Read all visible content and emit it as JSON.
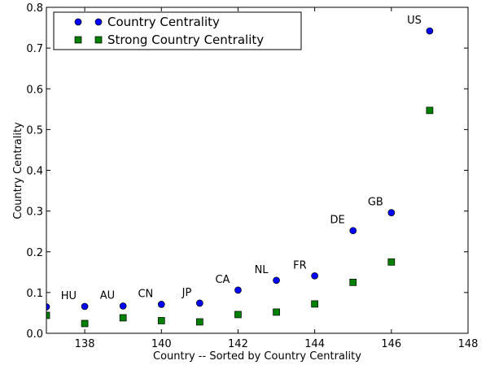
{
  "chart_data": {
    "type": "scatter",
    "xlabel": "Country -- Sorted by Country Centrality",
    "ylabel": "Country Centrality",
    "xlim": [
      137,
      148
    ],
    "ylim": [
      0,
      0.8
    ],
    "xticks": [
      138,
      140,
      142,
      144,
      146,
      148
    ],
    "yticks": [
      0.0,
      0.1,
      0.2,
      0.3,
      0.4,
      0.5,
      0.6,
      0.7,
      0.8
    ],
    "xtick_labels": [
      "138",
      "140",
      "142",
      "144",
      "146",
      "148"
    ],
    "ytick_labels": [
      "0.0",
      "0.1",
      "0.2",
      "0.3",
      "0.4",
      "0.5",
      "0.6",
      "0.7",
      "0.8"
    ],
    "grid": false,
    "legend_position": "top-left",
    "series": [
      {
        "name": "Country Centrality",
        "marker": "circle",
        "color": "#0000ff",
        "x": [
          137,
          138,
          139,
          140,
          141,
          142,
          143,
          144,
          145,
          146,
          147
        ],
        "y": [
          0.065,
          0.066,
          0.067,
          0.071,
          0.074,
          0.106,
          0.13,
          0.141,
          0.252,
          0.296,
          0.742
        ]
      },
      {
        "name": "Strong Country Centrality",
        "marker": "square",
        "color": "#008000",
        "x": [
          137,
          138,
          139,
          140,
          141,
          142,
          143,
          144,
          145,
          146,
          147
        ],
        "y": [
          0.044,
          0.024,
          0.038,
          0.031,
          0.028,
          0.046,
          0.052,
          0.072,
          0.125,
          0.175,
          0.547
        ]
      }
    ],
    "point_labels": [
      {
        "text": "HU",
        "x": 138
      },
      {
        "text": "AU",
        "x": 139
      },
      {
        "text": "CN",
        "x": 140
      },
      {
        "text": "JP",
        "x": 141
      },
      {
        "text": "CA",
        "x": 142
      },
      {
        "text": "NL",
        "x": 143
      },
      {
        "text": "FR",
        "x": 144
      },
      {
        "text": "DE",
        "x": 145
      },
      {
        "text": "GB",
        "x": 146
      },
      {
        "text": "US",
        "x": 147
      }
    ]
  }
}
